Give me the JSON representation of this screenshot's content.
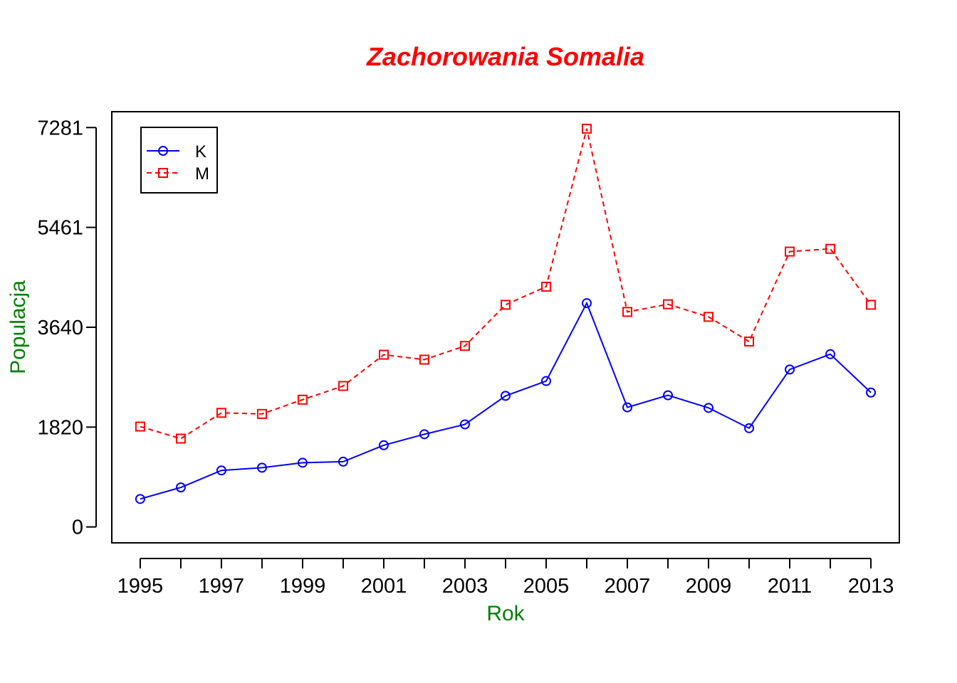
{
  "chart_data": {
    "type": "line",
    "title": "Zachorowania Somalia",
    "xlabel": "Rok",
    "ylabel": "Populacja",
    "x": [
      1995,
      1996,
      1997,
      1998,
      1999,
      2000,
      2001,
      2002,
      2003,
      2004,
      2005,
      2006,
      2007,
      2008,
      2009,
      2010,
      2011,
      2012,
      2013
    ],
    "x_tick_labels": [
      "1995",
      "1997",
      "1999",
      "2001",
      "2003",
      "2005",
      "2007",
      "2009",
      "2011",
      "2013"
    ],
    "y_ticks": [
      0,
      1820,
      3640,
      5461,
      7281
    ],
    "y_tick_labels": [
      "0",
      "1820",
      "3640",
      "5461",
      "7281"
    ],
    "xlim": [
      1994.3,
      2013.7
    ],
    "ylim": [
      -290,
      7570
    ],
    "grid": false,
    "legend_position": "top-left",
    "series": [
      {
        "name": "K",
        "color": "#0000ff",
        "line": "solid",
        "marker": "circle",
        "values": [
          510,
          720,
          1030,
          1080,
          1170,
          1190,
          1490,
          1690,
          1870,
          2390,
          2660,
          4080,
          2180,
          2400,
          2170,
          1800,
          2870,
          3150,
          2450
        ]
      },
      {
        "name": "M",
        "color": "#ff0000",
        "line": "dashed",
        "marker": "square",
        "values": [
          1830,
          1610,
          2080,
          2060,
          2320,
          2570,
          3140,
          3050,
          3300,
          4050,
          4380,
          7260,
          3920,
          4060,
          3830,
          3380,
          5020,
          5070,
          4050
        ]
      }
    ],
    "colors": {
      "title": "#ff0000",
      "axis_labels": "#008000"
    }
  }
}
